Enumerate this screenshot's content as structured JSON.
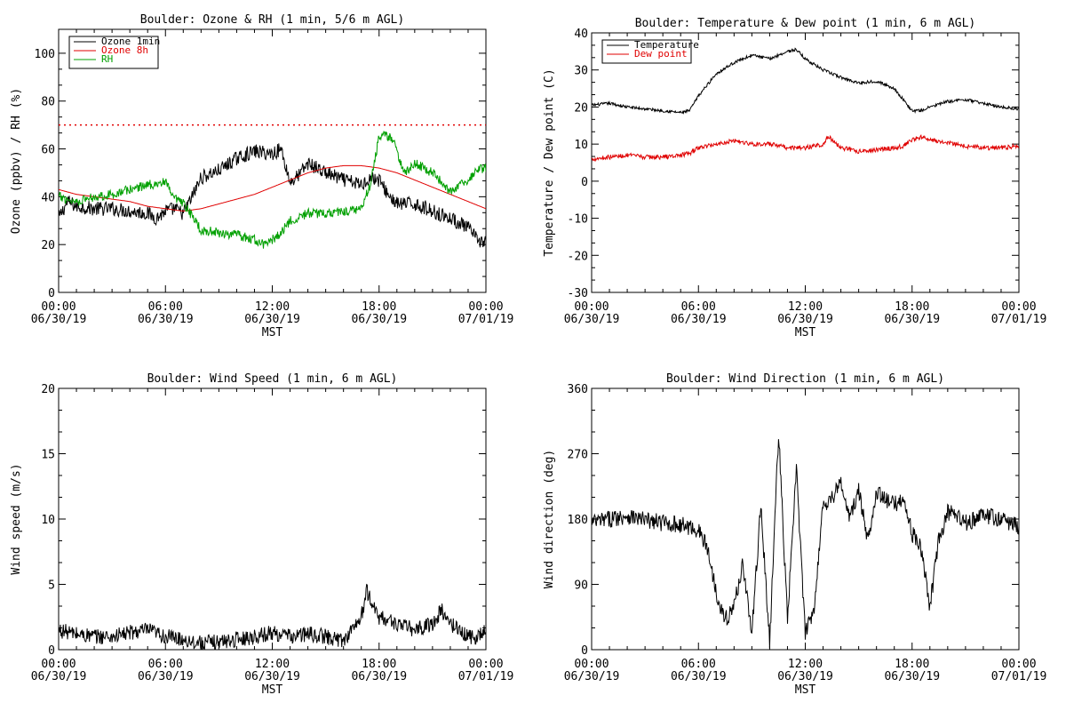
{
  "colors": {
    "black": "#000000",
    "red": "#e00000",
    "green": "#00a000"
  },
  "chart_data": [
    {
      "id": "ozone-rh",
      "type": "line",
      "title": "Boulder: Ozone & RH (1 min, 5/6 m AGL)",
      "xlabel": "MST",
      "ylabel": "Ozone (ppbv) / RH (%)",
      "xlim": [
        0,
        24
      ],
      "ylim": [
        0,
        110
      ],
      "yticks": [
        0,
        20,
        40,
        60,
        80,
        100
      ],
      "xticks": [
        {
          "x": 0,
          "l1": "00:00",
          "l2": "06/30/19"
        },
        {
          "x": 6,
          "l1": "06:00",
          "l2": "06/30/19"
        },
        {
          "x": 12,
          "l1": "12:00",
          "l2": "06/30/19"
        },
        {
          "x": 18,
          "l1": "18:00",
          "l2": "06/30/19"
        },
        {
          "x": 24,
          "l1": "00:00",
          "l2": "07/01/19"
        }
      ],
      "legend_position": "top-left",
      "reference_line": {
        "y": 70,
        "color": "#e00000",
        "style": "dotted"
      },
      "series": [
        {
          "name": "Ozone 1min",
          "color": "#000000",
          "noise": 3,
          "x": [
            0,
            0.5,
            1,
            2,
            3,
            4,
            5,
            5.5,
            6,
            6.5,
            7,
            7.5,
            8,
            9,
            10,
            11,
            12,
            12.5,
            13,
            13.5,
            14,
            15,
            16,
            17,
            17.5,
            18,
            18.5,
            19,
            20,
            21,
            22,
            23,
            23.5,
            24
          ],
          "y": [
            31,
            38,
            36,
            35,
            35,
            34,
            33,
            31,
            34,
            35,
            33,
            40,
            48,
            51,
            56,
            59,
            58,
            60,
            46,
            49,
            54,
            50,
            47,
            45,
            48,
            47,
            41,
            37,
            37,
            34,
            31,
            27,
            22,
            21
          ]
        },
        {
          "name": "Ozone 8h",
          "color": "#e00000",
          "noise": 0,
          "x": [
            0,
            1,
            2,
            3,
            4,
            5,
            6,
            7,
            8,
            9,
            10,
            11,
            12,
            13,
            14,
            15,
            16,
            17,
            18,
            19,
            20,
            21,
            22,
            23,
            24
          ],
          "y": [
            43,
            41,
            40,
            39,
            38,
            36,
            35,
            34,
            35,
            37,
            39,
            41,
            44,
            47,
            50,
            52,
            53,
            53,
            52,
            50,
            47,
            44,
            41,
            38,
            35
          ]
        },
        {
          "name": "RH",
          "color": "#00a000",
          "noise": 2,
          "x": [
            0,
            0.5,
            1,
            2,
            3,
            4,
            5,
            6,
            6.5,
            7,
            7.5,
            8,
            9,
            10,
            11,
            11.5,
            12,
            12.5,
            13,
            14,
            15,
            16,
            17,
            17.5,
            18,
            18.3,
            18.8,
            19,
            19.5,
            20,
            21,
            22,
            23,
            23.5,
            24
          ],
          "y": [
            40,
            39,
            38,
            40,
            41,
            43,
            45,
            46,
            39,
            37,
            32,
            26,
            25,
            24,
            22,
            20,
            22,
            25,
            30,
            33,
            33,
            34,
            35,
            45,
            65,
            66,
            64,
            58,
            50,
            54,
            50,
            42,
            47,
            51,
            52
          ]
        }
      ]
    },
    {
      "id": "temp-dew",
      "type": "line",
      "title": "Boulder: Temperature & Dew point (1 min, 6 m AGL)",
      "xlabel": "MST",
      "ylabel": "Temperature / Dew point (C)",
      "xlim": [
        0,
        24
      ],
      "ylim": [
        -30,
        40
      ],
      "yticks": [
        -30,
        -20,
        -10,
        0,
        10,
        20,
        30,
        40
      ],
      "xticks": [
        {
          "x": 0,
          "l1": "00:00",
          "l2": "06/30/19"
        },
        {
          "x": 6,
          "l1": "06:00",
          "l2": "06/30/19"
        },
        {
          "x": 12,
          "l1": "12:00",
          "l2": "06/30/19"
        },
        {
          "x": 18,
          "l1": "18:00",
          "l2": "06/30/19"
        },
        {
          "x": 24,
          "l1": "00:00",
          "l2": "07/01/19"
        }
      ],
      "legend_position": "top-left",
      "series": [
        {
          "name": "Temperature",
          "color": "#000000",
          "noise": 0.4,
          "x": [
            0,
            1,
            2,
            3,
            4,
            5,
            5.5,
            6,
            6.5,
            7,
            8,
            9,
            10,
            11,
            11.5,
            12,
            13,
            13.5,
            14,
            15,
            16,
            17,
            17.5,
            18,
            18.5,
            19,
            20,
            21,
            22,
            23,
            24
          ],
          "y": [
            20.5,
            21,
            20,
            19.5,
            19,
            18.5,
            19,
            23,
            26,
            29,
            32,
            34,
            33,
            35,
            35.5,
            33,
            30,
            29,
            28,
            26.5,
            27,
            25,
            22,
            19,
            19,
            20,
            21.5,
            22,
            21,
            20,
            19.5
          ]
        },
        {
          "name": "Dew point",
          "color": "#e00000",
          "noise": 0.6,
          "x": [
            0,
            1,
            2,
            3,
            4,
            5,
            5.5,
            6,
            6.5,
            7,
            8,
            9,
            10,
            11,
            12,
            13,
            13.3,
            14,
            15,
            16,
            17,
            17.5,
            18,
            18.5,
            19,
            20,
            21,
            22,
            23,
            24
          ],
          "y": [
            6,
            6.5,
            7,
            6.5,
            6.5,
            7,
            7.5,
            9,
            9.5,
            10,
            11,
            10,
            10,
            9,
            9,
            10,
            12,
            9,
            8,
            8.5,
            9,
            9.5,
            11,
            12,
            11,
            10.5,
            9.5,
            9,
            9,
            9.5
          ]
        }
      ]
    },
    {
      "id": "wind-speed",
      "type": "line",
      "title": "Boulder: Wind Speed (1 min, 6 m AGL)",
      "xlabel": "MST",
      "ylabel": "Wind speed (m/s)",
      "xlim": [
        0,
        24
      ],
      "ylim": [
        0,
        20
      ],
      "yticks": [
        0,
        5,
        10,
        15,
        20
      ],
      "xticks": [
        {
          "x": 0,
          "l1": "00:00",
          "l2": "06/30/19"
        },
        {
          "x": 6,
          "l1": "06:00",
          "l2": "06/30/19"
        },
        {
          "x": 12,
          "l1": "12:00",
          "l2": "06/30/19"
        },
        {
          "x": 18,
          "l1": "18:00",
          "l2": "06/30/19"
        },
        {
          "x": 24,
          "l1": "00:00",
          "l2": "07/01/19"
        }
      ],
      "series": [
        {
          "name": "",
          "color": "#000000",
          "noise": 0.6,
          "x": [
            0,
            1,
            2,
            3,
            4,
            5,
            6,
            7,
            8,
            9,
            10,
            11,
            12,
            13,
            14,
            15,
            16,
            17,
            17.3,
            17.6,
            18,
            19,
            20,
            21,
            21.5,
            22,
            23,
            23.5,
            24
          ],
          "y": [
            1.5,
            1.2,
            1,
            1,
            1.3,
            1.5,
            1,
            0.8,
            0.5,
            0.6,
            0.8,
            1,
            1.3,
            1,
            1.2,
            1,
            0.7,
            2.5,
            4.5,
            3.5,
            2.5,
            2,
            1.5,
            2,
            3,
            2,
            1,
            1,
            1.5
          ]
        }
      ]
    },
    {
      "id": "wind-dir",
      "type": "line",
      "title": "Boulder: Wind Direction (1 min, 6 m AGL)",
      "xlabel": "MST",
      "ylabel": "Wind direction (deg)",
      "xlim": [
        0,
        24
      ],
      "ylim": [
        0,
        360
      ],
      "yticks": [
        0,
        90,
        180,
        270,
        360
      ],
      "xticks": [
        {
          "x": 0,
          "l1": "00:00",
          "l2": "06/30/19"
        },
        {
          "x": 6,
          "l1": "06:00",
          "l2": "06/30/19"
        },
        {
          "x": 12,
          "l1": "12:00",
          "l2": "06/30/19"
        },
        {
          "x": 18,
          "l1": "18:00",
          "l2": "06/30/19"
        },
        {
          "x": 24,
          "l1": "00:00",
          "l2": "07/01/19"
        }
      ],
      "series": [
        {
          "name": "",
          "color": "#000000",
          "noise": 12,
          "x": [
            0,
            1,
            2,
            3,
            4,
            5,
            6,
            6.5,
            7,
            7.5,
            8,
            8.5,
            9,
            9.5,
            10,
            10.5,
            11,
            11.5,
            12,
            12.5,
            13,
            13.5,
            14,
            14.5,
            15,
            15.5,
            16,
            16.5,
            17,
            17.5,
            18,
            18.5,
            19,
            19.5,
            20,
            21,
            22,
            23,
            24
          ],
          "y": [
            175,
            180,
            185,
            178,
            175,
            172,
            165,
            140,
            80,
            40,
            60,
            120,
            20,
            200,
            10,
            300,
            40,
            250,
            20,
            60,
            200,
            210,
            230,
            180,
            220,
            150,
            220,
            205,
            200,
            210,
            160,
            140,
            60,
            150,
            190,
            175,
            185,
            180,
            170
          ]
        }
      ]
    }
  ]
}
